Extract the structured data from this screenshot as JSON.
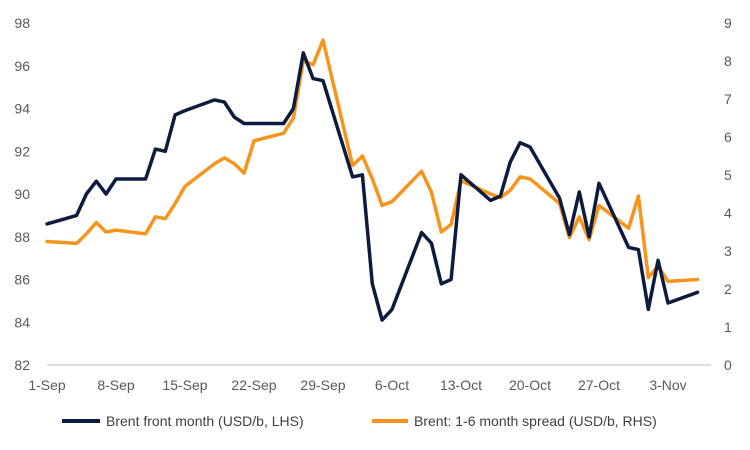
{
  "chart_data": {
    "type": "line",
    "x_type": "date",
    "x_ticks": [
      "1-Sep",
      "8-Sep",
      "15-Sep",
      "22-Sep",
      "29-Sep",
      "6-Oct",
      "13-Oct",
      "20-Oct",
      "27-Oct",
      "3-Nov"
    ],
    "y_left": {
      "min": 82,
      "max": 98,
      "step": 2,
      "ticks": [
        "82",
        "84",
        "86",
        "88",
        "90",
        "92",
        "94",
        "96",
        "98"
      ]
    },
    "y_right": {
      "min": 0,
      "max": 9,
      "step": 1,
      "ticks": [
        "0",
        "1",
        "2",
        "3",
        "4",
        "5",
        "6",
        "7",
        "8",
        "9"
      ]
    },
    "grid": false,
    "legend_position": "bottom",
    "series": [
      {
        "name": "Brent front month (USD/b, LHS)",
        "axis": "left",
        "color": "#0d1b3e",
        "points": [
          [
            "1-Sep",
            88.6
          ],
          [
            "4-Sep",
            89.0
          ],
          [
            "5-Sep",
            90.0
          ],
          [
            "6-Sep",
            90.6
          ],
          [
            "7-Sep",
            90.0
          ],
          [
            "8-Sep",
            90.7
          ],
          [
            "11-Sep",
            90.7
          ],
          [
            "12-Sep",
            92.1
          ],
          [
            "13-Sep",
            92.0
          ],
          [
            "14-Sep",
            93.7
          ],
          [
            "15-Sep",
            93.9
          ],
          [
            "18-Sep",
            94.4
          ],
          [
            "19-Sep",
            94.3
          ],
          [
            "20-Sep",
            93.6
          ],
          [
            "21-Sep",
            93.3
          ],
          [
            "22-Sep",
            93.3
          ],
          [
            "25-Sep",
            93.3
          ],
          [
            "26-Sep",
            94.0
          ],
          [
            "27-Sep",
            96.6
          ],
          [
            "28-Sep",
            95.4
          ],
          [
            "29-Sep",
            95.3
          ],
          [
            "2-Oct",
            90.8
          ],
          [
            "3-Oct",
            90.9
          ],
          [
            "4-Oct",
            85.8
          ],
          [
            "5-Oct",
            84.1
          ],
          [
            "6-Oct",
            84.6
          ],
          [
            "9-Oct",
            88.2
          ],
          [
            "10-Oct",
            87.7
          ],
          [
            "11-Oct",
            85.8
          ],
          [
            "12-Oct",
            86.0
          ],
          [
            "13-Oct",
            90.9
          ],
          [
            "16-Oct",
            89.7
          ],
          [
            "17-Oct",
            89.9
          ],
          [
            "18-Oct",
            91.5
          ],
          [
            "19-Oct",
            92.4
          ],
          [
            "20-Oct",
            92.2
          ],
          [
            "23-Oct",
            89.8
          ],
          [
            "24-Oct",
            88.1
          ],
          [
            "25-Oct",
            90.1
          ],
          [
            "26-Oct",
            88.0
          ],
          [
            "27-Oct",
            90.5
          ],
          [
            "30-Oct",
            87.5
          ],
          [
            "31-Oct",
            87.4
          ],
          [
            "1-Nov",
            84.6
          ],
          [
            "2-Nov",
            86.9
          ],
          [
            "3-Nov",
            84.9
          ],
          [
            "6-Nov",
            85.4
          ]
        ]
      },
      {
        "name": "Brent: 1-6 month spread (USD/b, RHS)",
        "axis": "right",
        "color": "#f7941d",
        "points": [
          [
            "1-Sep",
            3.25
          ],
          [
            "4-Sep",
            3.2
          ],
          [
            "5-Sep",
            3.45
          ],
          [
            "6-Sep",
            3.75
          ],
          [
            "7-Sep",
            3.5
          ],
          [
            "8-Sep",
            3.55
          ],
          [
            "11-Sep",
            3.45
          ],
          [
            "12-Sep",
            3.9
          ],
          [
            "13-Sep",
            3.85
          ],
          [
            "14-Sep",
            4.25
          ],
          [
            "15-Sep",
            4.7
          ],
          [
            "18-Sep",
            5.3
          ],
          [
            "19-Sep",
            5.45
          ],
          [
            "20-Sep",
            5.3
          ],
          [
            "21-Sep",
            5.05
          ],
          [
            "22-Sep",
            5.9
          ],
          [
            "25-Sep",
            6.1
          ],
          [
            "26-Sep",
            6.5
          ],
          [
            "27-Sep",
            8.0
          ],
          [
            "28-Sep",
            7.9
          ],
          [
            "29-Sep",
            8.55
          ],
          [
            "2-Oct",
            5.25
          ],
          [
            "3-Oct",
            5.5
          ],
          [
            "4-Oct",
            4.9
          ],
          [
            "5-Oct",
            4.2
          ],
          [
            "6-Oct",
            4.3
          ],
          [
            "9-Oct",
            5.1
          ],
          [
            "10-Oct",
            4.55
          ],
          [
            "11-Oct",
            3.5
          ],
          [
            "12-Oct",
            3.7
          ],
          [
            "13-Oct",
            4.85
          ],
          [
            "16-Oct",
            4.5
          ],
          [
            "17-Oct",
            4.4
          ],
          [
            "18-Oct",
            4.6
          ],
          [
            "19-Oct",
            4.95
          ],
          [
            "20-Oct",
            4.9
          ],
          [
            "23-Oct",
            4.25
          ],
          [
            "24-Oct",
            3.35
          ],
          [
            "25-Oct",
            3.9
          ],
          [
            "26-Oct",
            3.3
          ],
          [
            "27-Oct",
            4.2
          ],
          [
            "30-Oct",
            3.6
          ],
          [
            "31-Oct",
            4.45
          ],
          [
            "1-Nov",
            2.3
          ],
          [
            "2-Nov",
            2.6
          ],
          [
            "3-Nov",
            2.2
          ],
          [
            "6-Nov",
            2.25
          ]
        ]
      }
    ]
  }
}
